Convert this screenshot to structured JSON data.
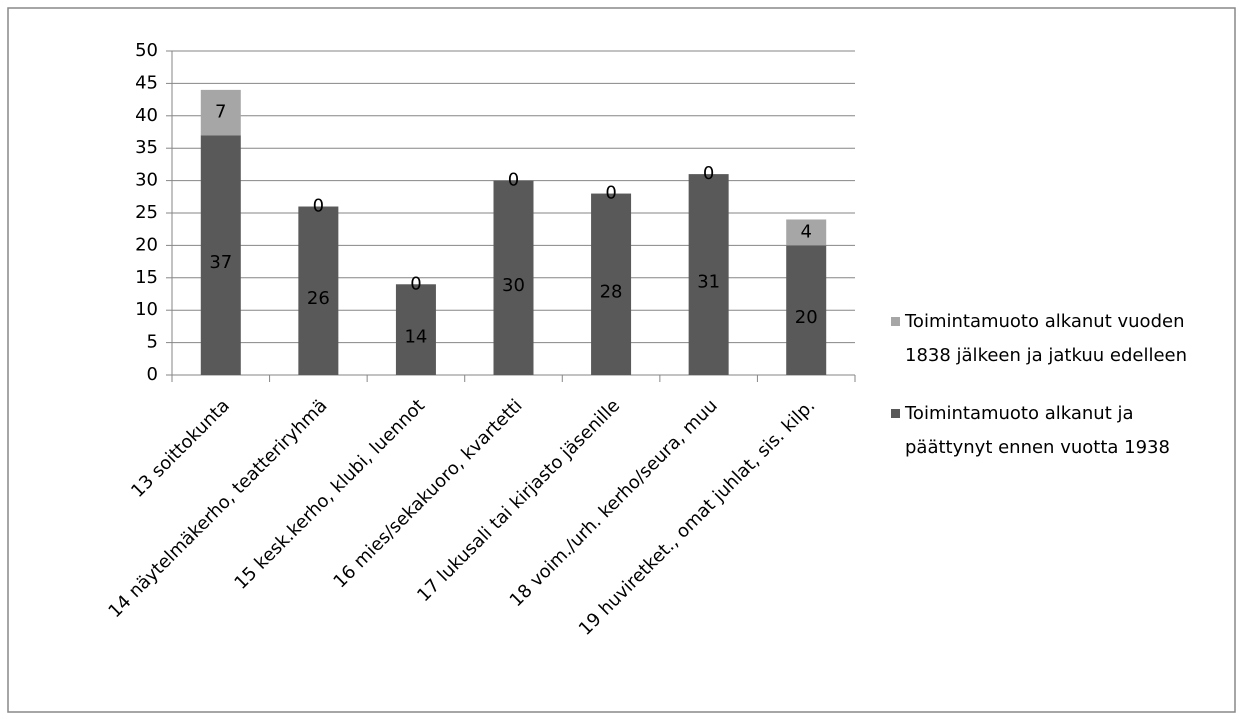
{
  "chart_data": {
    "type": "stacked_bar",
    "categories": [
      "13 soittokunta",
      "14 näytelmäkerho, teatteriryhmä",
      "15 kesk.kerho, klubi, luennot",
      "16 mies/sekakuoro, kvartetti",
      "17 lukusali tai kirjasto jäsenille",
      "18 voim./urh. kerho/seura, muu",
      "19 huviretket., omat juhlat, sis. kilp."
    ],
    "series": [
      {
        "name": "Toimintamuoto alkanut ja päättynyt ennen vuotta 1938",
        "color": "#595959",
        "values": [
          37,
          26,
          14,
          30,
          28,
          31,
          20
        ]
      },
      {
        "name": "Toimintamuoto alkanut vuoden 1838 jälkeen ja jatkuu edelleen",
        "color": "#a6a6a6",
        "values": [
          7,
          0,
          0,
          0,
          0,
          0,
          4
        ]
      }
    ],
    "ylim": [
      0,
      50
    ],
    "yticks": [
      0,
      5,
      10,
      15,
      20,
      25,
      30,
      35,
      40,
      45,
      50
    ],
    "grid": true,
    "legend": "right"
  }
}
